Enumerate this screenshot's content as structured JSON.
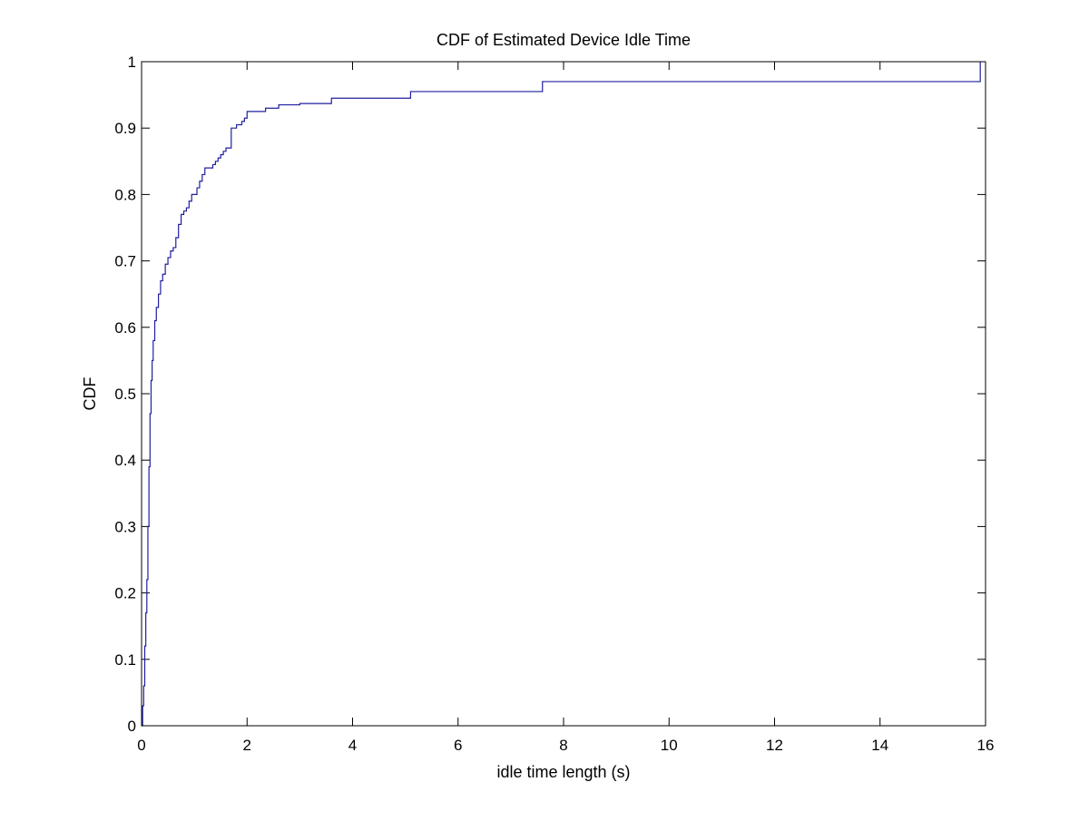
{
  "chart_data": {
    "type": "line",
    "title": "CDF of Estimated Device Idle Time",
    "xlabel": "idle time length (s)",
    "ylabel": "CDF",
    "xlim": [
      0,
      16
    ],
    "ylim": [
      0,
      1
    ],
    "x_ticks": [
      0,
      2,
      4,
      6,
      8,
      10,
      12,
      14,
      16
    ],
    "y_ticks": [
      0,
      0.1,
      0.2,
      0.3,
      0.4,
      0.5,
      0.6,
      0.7,
      0.8,
      0.9,
      1
    ],
    "x_tick_labels": [
      "0",
      "2",
      "4",
      "6",
      "8",
      "10",
      "12",
      "14",
      "16"
    ],
    "y_tick_labels": [
      "0",
      "0.1",
      "0.2",
      "0.3",
      "0.4",
      "0.5",
      "0.6",
      "0.7",
      "0.8",
      "0.9",
      "1"
    ],
    "grid": false,
    "series": [
      {
        "color": "#1f1f9f",
        "step": true,
        "x": [
          0,
          0.02,
          0.04,
          0.06,
          0.08,
          0.1,
          0.12,
          0.14,
          0.16,
          0.18,
          0.2,
          0.22,
          0.25,
          0.28,
          0.32,
          0.36,
          0.4,
          0.45,
          0.5,
          0.55,
          0.6,
          0.65,
          0.7,
          0.75,
          0.8,
          0.85,
          0.9,
          0.95,
          1.0,
          1.05,
          1.1,
          1.15,
          1.2,
          1.3,
          1.35,
          1.4,
          1.45,
          1.5,
          1.55,
          1.6,
          1.7,
          1.75,
          1.8,
          1.85,
          1.9,
          1.95,
          2.0,
          2.35,
          2.6,
          2.65,
          2.7,
          2.75,
          2.8,
          3.0,
          3.6,
          5.1,
          7.6,
          15.9
        ],
        "y": [
          0.0,
          0.03,
          0.06,
          0.12,
          0.17,
          0.22,
          0.3,
          0.39,
          0.47,
          0.52,
          0.55,
          0.58,
          0.61,
          0.63,
          0.65,
          0.67,
          0.68,
          0.695,
          0.705,
          0.715,
          0.72,
          0.735,
          0.755,
          0.77,
          0.775,
          0.78,
          0.79,
          0.8,
          0.8,
          0.81,
          0.82,
          0.83,
          0.84,
          0.84,
          0.845,
          0.85,
          0.855,
          0.86,
          0.865,
          0.87,
          0.9,
          0.9,
          0.905,
          0.905,
          0.91,
          0.915,
          0.925,
          0.93,
          0.935,
          0.935,
          0.935,
          0.935,
          0.935,
          0.937,
          0.945,
          0.955,
          0.97,
          1.0
        ]
      }
    ]
  }
}
